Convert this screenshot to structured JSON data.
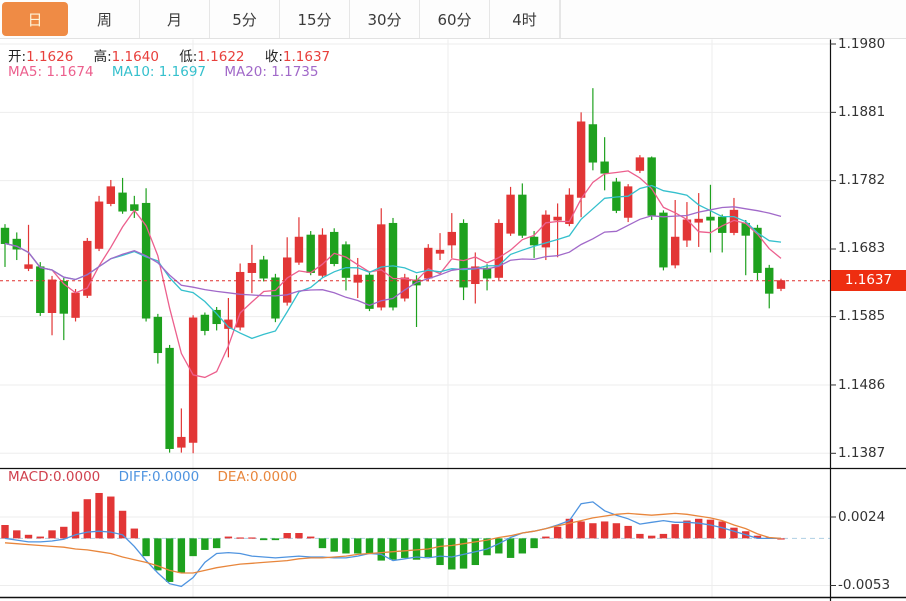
{
  "tabs": {
    "items": [
      {
        "label": "日",
        "active": true
      },
      {
        "label": "周",
        "active": false
      },
      {
        "label": "月",
        "active": false
      },
      {
        "label": "5分",
        "active": false
      },
      {
        "label": "15分",
        "active": false
      },
      {
        "label": "30分",
        "active": false
      },
      {
        "label": "60分",
        "active": false
      },
      {
        "label": "4时",
        "active": false
      }
    ]
  },
  "ohlc": {
    "open_label": "开:",
    "open": "1.1626",
    "high_label": "高:",
    "high": "1.1640",
    "low_label": "低:",
    "low": "1.1622",
    "close_label": "收:",
    "close": "1.1637"
  },
  "ma": {
    "ma5_label": "MA5:",
    "ma5": "1.1674",
    "ma10_label": "MA10:",
    "ma10": "1.1697",
    "ma20_label": "MA20:",
    "ma20": "1.1735"
  },
  "main_axis": {
    "ticks": [
      "1.1980",
      "1.1881",
      "1.1782",
      "1.1683",
      "1.1585",
      "1.1486",
      "1.1387"
    ]
  },
  "price_badge": "1.1637",
  "macd_header": {
    "macd_label": "MACD:",
    "macd": "0.0000",
    "diff_label": "DIFF:",
    "diff": "0.0000",
    "dea_label": "DEA:",
    "dea": "0.0000"
  },
  "macd_axis": {
    "ticks": [
      "0.0024",
      "-0.0053"
    ]
  },
  "colors": {
    "up": "#e23636",
    "down": "#1ea11e",
    "ma5": "#ec5f8d",
    "ma10": "#35c0cd",
    "ma20": "#a169c9",
    "diff": "#4f94e0",
    "dea": "#e8863c",
    "price_line": "#e0312e",
    "badge": "#ee2e10",
    "active_tab": "#ef8b45",
    "zero_line": "#aecfe4",
    "grid": "#ededed"
  },
  "chart_data": {
    "type": "candlestick",
    "title": "",
    "price_axis": {
      "max": 1.198,
      "min": 1.1387,
      "ticks": [
        1.198,
        1.1881,
        1.1782,
        1.1683,
        1.1585,
        1.1486,
        1.1387
      ]
    },
    "last_price": 1.1637,
    "ma_periods": [
      5,
      10,
      20
    ],
    "candles": [
      [
        1.1713,
        1.1719,
        1.1657,
        1.1691
      ],
      [
        1.1697,
        1.1707,
        1.1667,
        1.1683
      ],
      [
        1.1655,
        1.1718,
        1.1651,
        1.166
      ],
      [
        1.1657,
        1.1664,
        1.1586,
        1.1591
      ],
      [
        1.1591,
        1.1644,
        1.1558,
        1.1638
      ],
      [
        1.1636,
        1.1641,
        1.1551,
        1.159
      ],
      [
        1.1584,
        1.1625,
        1.1578,
        1.1619
      ],
      [
        1.1616,
        1.1699,
        1.1612,
        1.1694
      ],
      [
        1.1684,
        1.176,
        1.168,
        1.1751
      ],
      [
        1.1749,
        1.1783,
        1.1745,
        1.1773
      ],
      [
        1.1764,
        1.1786,
        1.1734,
        1.1738
      ],
      [
        1.1747,
        1.176,
        1.1728,
        1.1739
      ],
      [
        1.1749,
        1.1771,
        1.1578,
        1.1583
      ],
      [
        1.1584,
        1.1589,
        1.1517,
        1.1533
      ],
      [
        1.1539,
        1.1544,
        1.1388,
        1.1394
      ],
      [
        1.1396,
        1.1452,
        1.1388,
        1.141
      ],
      [
        1.1403,
        1.1587,
        1.1387,
        1.1583
      ],
      [
        1.1587,
        1.1591,
        1.1558,
        1.1565
      ],
      [
        1.1594,
        1.1599,
        1.1565,
        1.1575
      ],
      [
        1.1568,
        1.1612,
        1.1526,
        1.158
      ],
      [
        1.157,
        1.1662,
        1.1565,
        1.1649
      ],
      [
        1.1649,
        1.1689,
        1.1619,
        1.1662
      ],
      [
        1.1667,
        1.1673,
        1.1636,
        1.1641
      ],
      [
        1.1641,
        1.1647,
        1.1577,
        1.1583
      ],
      [
        1.1606,
        1.17,
        1.1601,
        1.167
      ],
      [
        1.1664,
        1.1729,
        1.166,
        1.17
      ],
      [
        1.1703,
        1.1709,
        1.1645,
        1.1649
      ],
      [
        1.1645,
        1.1713,
        1.1641,
        1.1703
      ],
      [
        1.1707,
        1.1713,
        1.1658,
        1.1662
      ],
      [
        1.1689,
        1.1694,
        1.1623,
        1.1642
      ],
      [
        1.1635,
        1.167,
        1.1612,
        1.1645
      ],
      [
        1.1645,
        1.1651,
        1.1593,
        1.1597
      ],
      [
        1.1599,
        1.1742,
        1.1594,
        1.1718
      ],
      [
        1.172,
        1.1728,
        1.1594,
        1.1599
      ],
      [
        1.1612,
        1.1647,
        1.1607,
        1.1641
      ],
      [
        1.1638,
        1.1645,
        1.157,
        1.1631
      ],
      [
        1.1641,
        1.169,
        1.1636,
        1.1684
      ],
      [
        1.1677,
        1.1706,
        1.1667,
        1.1681
      ],
      [
        1.1689,
        1.1735,
        1.167,
        1.1707
      ],
      [
        1.172,
        1.1726,
        1.1609,
        1.1628
      ],
      [
        1.1633,
        1.1678,
        1.1604,
        1.1657
      ],
      [
        1.1655,
        1.1661,
        1.1623,
        1.1641
      ],
      [
        1.1642,
        1.1726,
        1.1638,
        1.172
      ],
      [
        1.1706,
        1.1773,
        1.1702,
        1.1761
      ],
      [
        1.1761,
        1.1778,
        1.1699,
        1.1703
      ],
      [
        1.17,
        1.1709,
        1.167,
        1.1689
      ],
      [
        1.1686,
        1.1739,
        1.1667,
        1.1732
      ],
      [
        1.1725,
        1.1749,
        1.1671,
        1.1729
      ],
      [
        1.172,
        1.1771,
        1.1716,
        1.1761
      ],
      [
        1.1758,
        1.1881,
        1.1729,
        1.1867
      ],
      [
        1.1863,
        1.1916,
        1.1797,
        1.1809
      ],
      [
        1.1809,
        1.1845,
        1.1768,
        1.1793
      ],
      [
        1.178,
        1.1786,
        1.1735,
        1.1739
      ],
      [
        1.1729,
        1.1777,
        1.1722,
        1.1773
      ],
      [
        1.1797,
        1.1819,
        1.1793,
        1.1815
      ],
      [
        1.1815,
        1.1817,
        1.1725,
        1.1732
      ],
      [
        1.1735,
        1.1739,
        1.1652,
        1.1657
      ],
      [
        1.166,
        1.1754,
        1.1655,
        1.17
      ],
      [
        1.1696,
        1.1751,
        1.1686,
        1.1725
      ],
      [
        1.1722,
        1.1764,
        1.1686,
        1.1726
      ],
      [
        1.1729,
        1.1776,
        1.1678,
        1.1725
      ],
      [
        1.1729,
        1.1733,
        1.1678,
        1.1707
      ],
      [
        1.1707,
        1.1757,
        1.1703,
        1.1739
      ],
      [
        1.172,
        1.1725,
        1.1645,
        1.1703
      ],
      [
        1.1713,
        1.1718,
        1.1638,
        1.1649
      ],
      [
        1.1655,
        1.166,
        1.1597,
        1.1619
      ],
      [
        1.1626,
        1.164,
        1.1622,
        1.1637
      ]
    ],
    "macd": {
      "axis_ticks": [
        0.0024,
        -0.0053
      ],
      "histogram": [
        0.0015,
        0.0009,
        0.0004,
        0.0002,
        0.0009,
        0.0013,
        0.003,
        0.0044,
        0.0051,
        0.0047,
        0.0031,
        0.0011,
        -0.002,
        -0.0036,
        -0.0049,
        -0.0039,
        -0.002,
        -0.0013,
        -0.0011,
        0.0002,
        0.0001,
        0.0001,
        -0.0002,
        -0.0002,
        0.0006,
        0.0006,
        0.0002,
        -0.0011,
        -0.0015,
        -0.0017,
        -0.0017,
        -0.0017,
        -0.0025,
        -0.0024,
        -0.0022,
        -0.0024,
        -0.0021,
        -0.003,
        -0.0035,
        -0.0034,
        -0.003,
        -0.0019,
        -0.0017,
        -0.0022,
        -0.0017,
        -0.0011,
        0.0002,
        0.0013,
        0.0022,
        0.0019,
        0.0017,
        0.0019,
        0.0017,
        0.0014,
        0.0005,
        0.0003,
        0.0005,
        0.0016,
        0.002,
        0.0022,
        0.0021,
        0.0019,
        0.0012,
        0.0008,
        0.0003,
        0.0001,
        0.0
      ],
      "diff": [
        0.0,
        -0.0002,
        -0.0004,
        -0.0004,
        -0.0003,
        -0.0001,
        0.0004,
        0.0007,
        0.0008,
        0.0007,
        0.0004,
        -0.0009,
        -0.0025,
        -0.0039,
        -0.0051,
        -0.0054,
        -0.0044,
        -0.0027,
        -0.0017,
        -0.0016,
        -0.0017,
        -0.002,
        -0.0021,
        -0.0022,
        -0.0021,
        -0.002,
        -0.0021,
        -0.0021,
        -0.0022,
        -0.0022,
        -0.002,
        -0.0017,
        -0.0018,
        -0.0025,
        -0.0023,
        -0.0021,
        -0.0022,
        -0.002,
        -0.0021,
        -0.0018,
        -0.0015,
        -0.0012,
        -0.0006,
        0.0001,
        0.0006,
        0.0008,
        0.0011,
        0.0015,
        0.002,
        0.0039,
        0.0041,
        0.0031,
        0.0026,
        0.0022,
        0.0016,
        0.0018,
        0.002,
        0.0018,
        0.0018,
        0.0017,
        0.0015,
        0.0012,
        0.0008,
        0.0004,
        0.0,
        0.0,
        0.0
      ],
      "dea": [
        -0.0005,
        -0.0006,
        -0.0007,
        -0.0008,
        -0.0009,
        -0.001,
        -0.0012,
        -0.0013,
        -0.0015,
        -0.0017,
        -0.0021,
        -0.0024,
        -0.0027,
        -0.0031,
        -0.0036,
        -0.0039,
        -0.0039,
        -0.0036,
        -0.0033,
        -0.0031,
        -0.0029,
        -0.0028,
        -0.0027,
        -0.0026,
        -0.0025,
        -0.0023,
        -0.0022,
        -0.0022,
        -0.0021,
        -0.002,
        -0.0018,
        -0.0017,
        -0.0016,
        -0.0015,
        -0.0014,
        -0.0013,
        -0.0012,
        -0.0009,
        -0.0008,
        -0.0006,
        -0.0004,
        -0.0002,
        0.0001,
        0.0003,
        0.0006,
        0.0008,
        0.0011,
        0.0014,
        0.0017,
        0.002,
        0.0023,
        0.0025,
        0.0027,
        0.0028,
        0.0027,
        0.0026,
        0.0027,
        0.0028,
        0.0027,
        0.0025,
        0.0023,
        0.002,
        0.0015,
        0.0011,
        0.0005,
        0.0001,
        0.0
      ]
    }
  }
}
